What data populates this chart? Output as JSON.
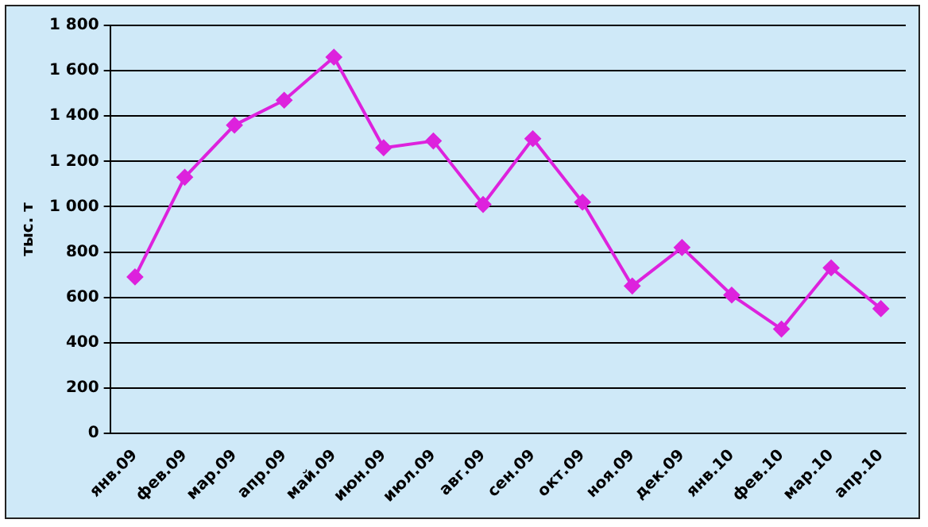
{
  "chart_data": {
    "type": "line",
    "ylabel": "тыс. т",
    "categories": [
      "янв.09",
      "фев.09",
      "мар.09",
      "апр.09",
      "май.09",
      "июн.09",
      "июл.09",
      "авг.09",
      "сен.09",
      "окт.09",
      "ноя.09",
      "дек.09",
      "янв.10",
      "фев.10",
      "мар.10",
      "апр.10"
    ],
    "series": [
      {
        "color": "#dd22dd",
        "values": [
          690,
          1130,
          1360,
          1470,
          1660,
          1260,
          1290,
          1010,
          1300,
          1020,
          650,
          820,
          610,
          460,
          730,
          550
        ]
      }
    ],
    "ylim": [
      0,
      1800
    ],
    "yticks": [
      {
        "value": 0,
        "label": "0"
      },
      {
        "value": 200,
        "label": "200"
      },
      {
        "value": 400,
        "label": "400"
      },
      {
        "value": 600,
        "label": "600"
      },
      {
        "value": 800,
        "label": "800"
      },
      {
        "value": 1000,
        "label": "1 000"
      },
      {
        "value": 1200,
        "label": "1 200"
      },
      {
        "value": 1400,
        "label": "1 400"
      },
      {
        "value": 1600,
        "label": "1 600"
      },
      {
        "value": 1800,
        "label": "1 800"
      }
    ],
    "grid": "y",
    "legend": false,
    "marker": "diamond",
    "line_style": "solid"
  }
}
